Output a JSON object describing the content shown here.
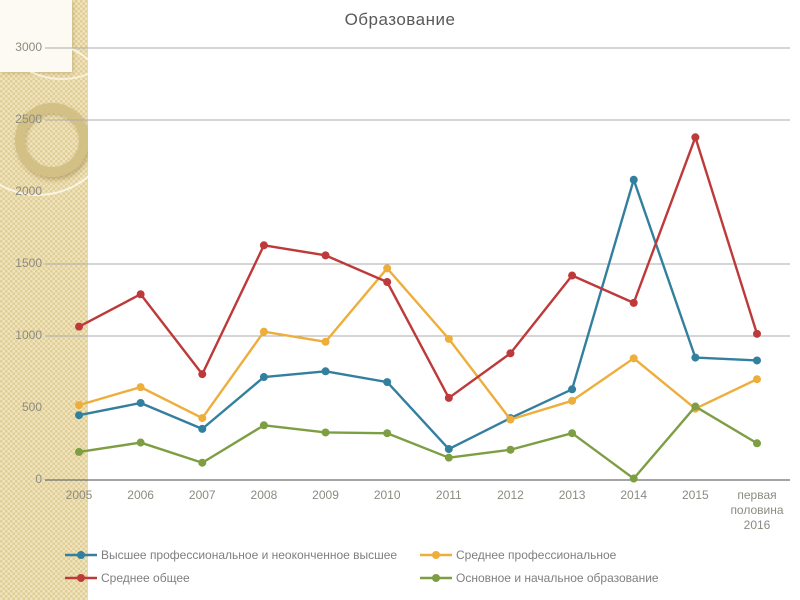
{
  "slide": {
    "title": "Образование"
  },
  "chart_data": {
    "type": "line",
    "title": "Образование",
    "categories": [
      "2005",
      "2006",
      "2007",
      "2008",
      "2009",
      "2010",
      "2011",
      "2012",
      "2013",
      "2014",
      "2015",
      "первая половина 2016"
    ],
    "series": [
      {
        "name": "Высшее профессиональное и неоконченное высшее",
        "color": "#337f9e",
        "values": [
          450,
          535,
          355,
          715,
          755,
          680,
          215,
          430,
          630,
          2085,
          850,
          830
        ]
      },
      {
        "name": "Среднее профессиональное",
        "color": "#edae3c",
        "values": [
          520,
          645,
          430,
          1030,
          960,
          1470,
          980,
          420,
          550,
          845,
          495,
          700
        ]
      },
      {
        "name": "Среднее общее",
        "color": "#be3a3a",
        "values": [
          1065,
          1290,
          735,
          1630,
          1560,
          1375,
          570,
          880,
          1420,
          1230,
          2380,
          1015
        ]
      },
      {
        "name": "Основное и начальное образование",
        "color": "#7e9e43",
        "values": [
          195,
          260,
          120,
          380,
          330,
          325,
          155,
          210,
          325,
          10,
          510,
          255
        ]
      }
    ],
    "y_tick_labels": [
      3000,
      2500,
      2000,
      1500,
      1000,
      500,
      0
    ],
    "gridline_values": [
      3000,
      2500,
      1500,
      1000
    ],
    "ylim": [
      0,
      3000
    ],
    "grid": true,
    "legend_position": "bottom",
    "legend_rows": [
      [
        0,
        1
      ],
      [
        2,
        3
      ]
    ]
  },
  "style": {
    "gridline_color": "#ababab",
    "axis_color": "#6e6e6e",
    "label_color": "#8b8b80",
    "title_color": "#595959",
    "legend_text_color": "#7f7f7f",
    "sidebar_color": "#e9d8a2",
    "corner_box_color": "#fcfaf2",
    "ring_color": "#d3c085"
  }
}
